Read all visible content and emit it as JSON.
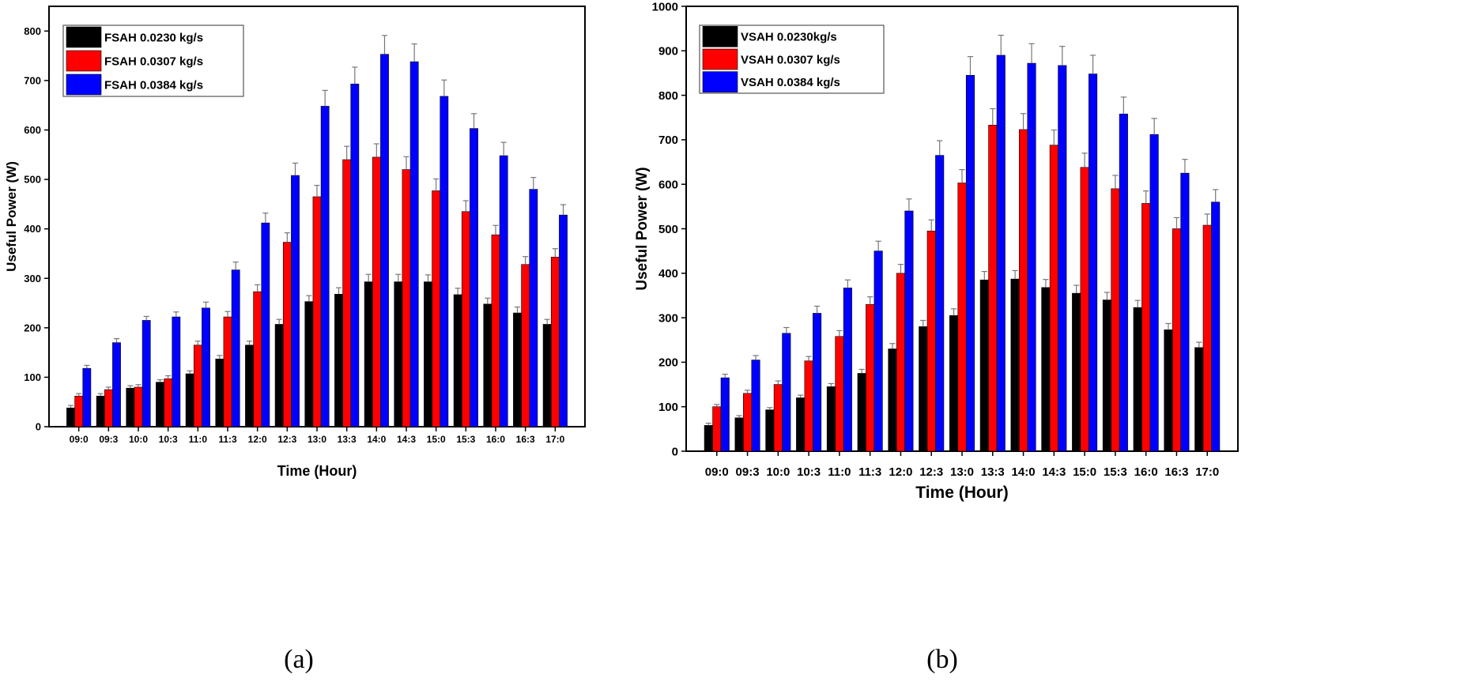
{
  "chart_data": [
    {
      "type": "bar",
      "panel": "a",
      "caption": "(a)",
      "xlabel": "Time (Hour)",
      "ylabel": "Useful Power (W)",
      "ylim": [
        0,
        850
      ],
      "yticks": [
        0,
        100,
        200,
        300,
        400,
        500,
        600,
        700,
        800
      ],
      "categories": [
        "09:0",
        "09:3",
        "10:0",
        "10:3",
        "11:0",
        "11:3",
        "12:0",
        "12:3",
        "13:0",
        "13:3",
        "14:0",
        "14:3",
        "15:0",
        "15:3",
        "16:0",
        "16:3",
        "17:0"
      ],
      "legend_position": "top-left",
      "series": [
        {
          "name": "FSAH 0.0230 kg/s",
          "color": "#000000",
          "values": [
            38,
            62,
            78,
            90,
            107,
            137,
            165,
            207,
            253,
            268,
            293,
            293,
            293,
            267,
            248,
            230,
            207
          ],
          "error": [
            5,
            5,
            5,
            5,
            6,
            7,
            8,
            10,
            12,
            13,
            15,
            15,
            14,
            13,
            12,
            12,
            10
          ]
        },
        {
          "name": "FSAH 0.0307 kg/s",
          "color": "#ff0000",
          "values": [
            62,
            75,
            80,
            97,
            165,
            222,
            273,
            373,
            465,
            540,
            545,
            520,
            477,
            435,
            388,
            328,
            343
          ],
          "error": [
            5,
            5,
            5,
            6,
            8,
            11,
            14,
            19,
            23,
            27,
            27,
            26,
            24,
            22,
            19,
            16,
            17
          ]
        },
        {
          "name": "FSAH 0.0384 kg/s",
          "color": "#0000ff",
          "values": [
            118,
            170,
            215,
            222,
            240,
            317,
            412,
            508,
            648,
            693,
            753,
            738,
            668,
            603,
            548,
            480,
            428
          ],
          "error": [
            6,
            8,
            8,
            10,
            12,
            16,
            20,
            25,
            32,
            34,
            38,
            36,
            33,
            30,
            27,
            24,
            21
          ]
        }
      ]
    },
    {
      "type": "bar",
      "panel": "b",
      "caption": "(b)",
      "xlabel": "Time (Hour)",
      "ylabel": "Useful Power (W)",
      "ylim": [
        0,
        1000
      ],
      "yticks": [
        0,
        100,
        200,
        300,
        400,
        500,
        600,
        700,
        800,
        900,
        1000
      ],
      "categories": [
        "09:0",
        "09:3",
        "10:0",
        "10:3",
        "11:0",
        "11:3",
        "12:0",
        "12:3",
        "13:0",
        "13:3",
        "14:0",
        "14:3",
        "15:0",
        "15:3",
        "16:0",
        "16:3",
        "17:0"
      ],
      "legend_position": "top-left",
      "series": [
        {
          "name": "VSAH 0.0230kg/s",
          "color": "#000000",
          "values": [
            58,
            75,
            93,
            120,
            145,
            175,
            230,
            280,
            305,
            385,
            387,
            368,
            355,
            340,
            323,
            273,
            233
          ],
          "error": [
            5,
            5,
            5,
            6,
            7,
            9,
            12,
            14,
            15,
            19,
            19,
            18,
            18,
            17,
            16,
            14,
            12
          ]
        },
        {
          "name": "VSAH 0.0307 kg/s",
          "color": "#ff0000",
          "values": [
            100,
            130,
            150,
            203,
            258,
            330,
            400,
            495,
            603,
            733,
            723,
            688,
            638,
            590,
            557,
            500,
            508
          ],
          "error": [
            5,
            7,
            8,
            10,
            13,
            17,
            20,
            25,
            30,
            37,
            36,
            34,
            32,
            30,
            28,
            25,
            25
          ]
        },
        {
          "name": "VSAH 0.0384 kg/s",
          "color": "#0000ff",
          "values": [
            165,
            205,
            265,
            310,
            367,
            450,
            540,
            665,
            845,
            890,
            872,
            867,
            848,
            758,
            712,
            625,
            560
          ],
          "error": [
            8,
            10,
            13,
            16,
            18,
            22,
            27,
            33,
            42,
            45,
            44,
            43,
            42,
            38,
            36,
            31,
            28
          ]
        }
      ]
    }
  ]
}
